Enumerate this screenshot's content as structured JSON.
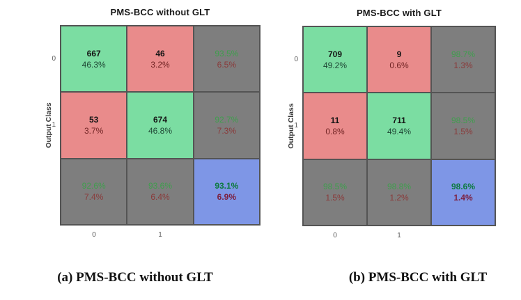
{
  "colors": {
    "cell-green": "#7bdda2",
    "cell-red": "#e98b8b",
    "cell-gray": "#7e7e7e",
    "cell-blue": "#7e96e6",
    "grid-line": "#545454",
    "text-count": "#151515",
    "text-green-on-gray": "#3f9e4d",
    "text-red-on-gray": "#8a3a3a",
    "text-green-diag": "#1e4634",
    "text-red-offdiag": "#702323",
    "text-green-blue": "#0c7a3e",
    "text-red-blue": "#7c2140"
  },
  "figures": [
    {
      "title": "PMS-BCC without GLT",
      "y_axis_label": "Output Class",
      "row_labels": [
        "0",
        "1"
      ],
      "col_labels": [
        "0",
        "1"
      ],
      "caption": "(a) PMS-BCC without GLT",
      "cells": [
        {
          "type": "green",
          "line1": "667",
          "line2": "46.3%"
        },
        {
          "type": "red",
          "line1": "46",
          "line2": "3.2%"
        },
        {
          "type": "gray",
          "line1": "93.5%",
          "line2": "6.5%"
        },
        {
          "type": "red",
          "line1": "53",
          "line2": "3.7%"
        },
        {
          "type": "green",
          "line1": "674",
          "line2": "46.8%"
        },
        {
          "type": "gray",
          "line1": "92.7%",
          "line2": "7.3%"
        },
        {
          "type": "gray",
          "line1": "92.6%",
          "line2": "7.4%"
        },
        {
          "type": "gray",
          "line1": "93.6%",
          "line2": "6.4%"
        },
        {
          "type": "blue",
          "line1": "93.1%",
          "line2": "6.9%"
        }
      ]
    },
    {
      "title": "PMS-BCC with GLT",
      "y_axis_label": "Output Class",
      "row_labels": [
        "0",
        "1"
      ],
      "col_labels": [
        "0",
        "1"
      ],
      "caption": "(b) PMS-BCC with GLT",
      "cells": [
        {
          "type": "green",
          "line1": "709",
          "line2": "49.2%"
        },
        {
          "type": "red",
          "line1": "9",
          "line2": "0.6%"
        },
        {
          "type": "gray",
          "line1": "98.7%",
          "line2": "1.3%"
        },
        {
          "type": "red",
          "line1": "11",
          "line2": "0.8%"
        },
        {
          "type": "green",
          "line1": "711",
          "line2": "49.4%"
        },
        {
          "type": "gray",
          "line1": "98.5%",
          "line2": "1.5%"
        },
        {
          "type": "gray",
          "line1": "98.5%",
          "line2": "1.5%"
        },
        {
          "type": "gray",
          "line1": "98.8%",
          "line2": "1.2%"
        },
        {
          "type": "blue",
          "line1": "98.6%",
          "line2": "1.4%"
        }
      ]
    }
  ],
  "chart_data": [
    {
      "type": "heatmap",
      "title": "PMS-BCC without GLT",
      "xlabel": "",
      "ylabel": "Output Class",
      "x_tick_labels": [
        "0",
        "1"
      ],
      "y_tick_labels": [
        "0",
        "1"
      ],
      "matrix_counts": [
        [
          667,
          46
        ],
        [
          53,
          674
        ]
      ],
      "matrix_percent_of_total": [
        [
          46.3,
          3.2
        ],
        [
          3.7,
          46.8
        ]
      ],
      "row_summary_percent": [
        [
          93.5,
          6.5
        ],
        [
          92.7,
          7.3
        ]
      ],
      "col_summary_percent": [
        [
          92.6,
          7.4
        ],
        [
          93.6,
          6.4
        ]
      ],
      "overall_percent": [
        93.1,
        6.9
      ],
      "caption": "(a) PMS-BCC without GLT",
      "legend_position": "none",
      "grid": true
    },
    {
      "type": "heatmap",
      "title": "PMS-BCC with GLT",
      "xlabel": "",
      "ylabel": "Output Class",
      "x_tick_labels": [
        "0",
        "1"
      ],
      "y_tick_labels": [
        "0",
        "1"
      ],
      "matrix_counts": [
        [
          709,
          9
        ],
        [
          11,
          711
        ]
      ],
      "matrix_percent_of_total": [
        [
          49.2,
          0.6
        ],
        [
          0.8,
          49.4
        ]
      ],
      "row_summary_percent": [
        [
          98.7,
          1.3
        ],
        [
          98.5,
          1.5
        ]
      ],
      "col_summary_percent": [
        [
          98.5,
          1.5
        ],
        [
          98.8,
          1.2
        ]
      ],
      "overall_percent": [
        98.6,
        1.4
      ],
      "caption": "(b) PMS-BCC with GLT",
      "legend_position": "none",
      "grid": true
    }
  ]
}
